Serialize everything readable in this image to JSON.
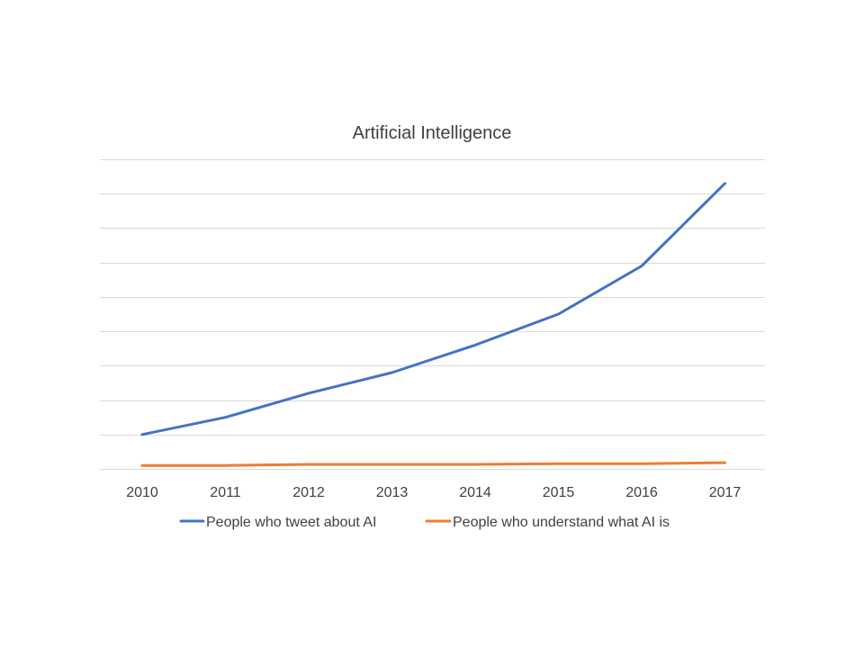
{
  "chart_data": {
    "type": "line",
    "title": "Artificial Intelligence",
    "xlabel": "",
    "ylabel": "",
    "categories": [
      "2010",
      "2011",
      "2012",
      "2013",
      "2014",
      "2015",
      "2016",
      "2017"
    ],
    "ylim": [
      0,
      9
    ],
    "y_ticks": [
      0,
      1,
      2,
      3,
      4,
      5,
      6,
      7,
      8,
      9
    ],
    "y_tick_labels_shown": false,
    "grid": true,
    "legend_position": "bottom",
    "series": [
      {
        "name": "People who tweet about AI",
        "color": "#4472c4",
        "values": [
          1.0,
          1.5,
          2.2,
          2.8,
          3.6,
          4.5,
          5.9,
          8.3
        ]
      },
      {
        "name": "People who understand what AI is",
        "color": "#ed7d31",
        "values": [
          0.1,
          0.1,
          0.13,
          0.13,
          0.13,
          0.15,
          0.15,
          0.18
        ]
      }
    ]
  }
}
